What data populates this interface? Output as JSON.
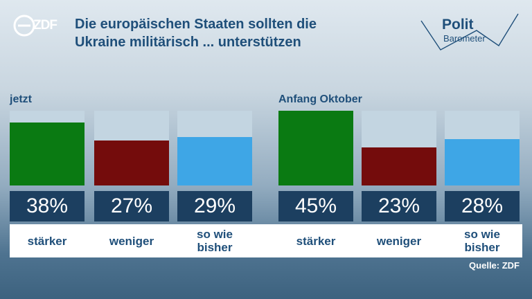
{
  "header": {
    "logo_text": "ZDF",
    "title_line1": "Die europäischen Staaten sollten die",
    "title_line2": "Ukraine militärisch ... unterstützen",
    "brand_polit": "Polit",
    "brand_barometer": "Barometer"
  },
  "source": "Quelle: ZDF",
  "colors": {
    "track": "#c3d5e1",
    "value_box": "#1c3f60",
    "title": "#1f4f7a"
  },
  "chart_data": [
    {
      "type": "bar",
      "title": "jetzt",
      "categories": [
        "stärker",
        "weniger",
        "so wie bisher"
      ],
      "values": [
        38,
        27,
        29
      ],
      "value_labels": [
        "38%",
        "27%",
        "29%"
      ],
      "colors": [
        "#0a7a12",
        "#740c0c",
        "#3ea6e6"
      ],
      "ylim": [
        0,
        45
      ],
      "grid": false
    },
    {
      "type": "bar",
      "title": "Anfang Oktober",
      "categories": [
        "stärker",
        "weniger",
        "so wie bisher"
      ],
      "values": [
        45,
        23,
        28
      ],
      "value_labels": [
        "45%",
        "23%",
        "28%"
      ],
      "colors": [
        "#0a7a12",
        "#740c0c",
        "#3ea6e6"
      ],
      "ylim": [
        0,
        45
      ],
      "grid": false
    }
  ]
}
